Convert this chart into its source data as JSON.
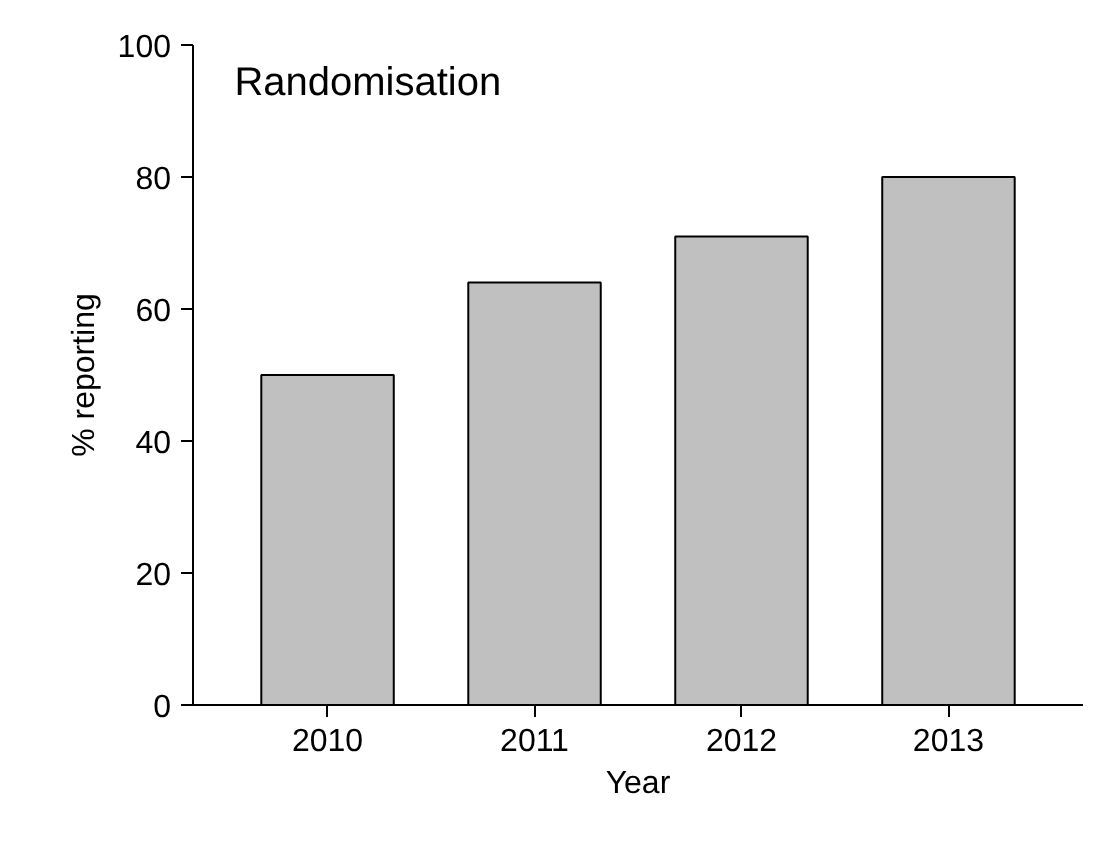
{
  "chart_data": {
    "type": "bar",
    "title": "Randomisation",
    "xlabel": "Year",
    "ylabel": "% reporting",
    "categories": [
      "2010",
      "2011",
      "2012",
      "2013"
    ],
    "values": [
      50,
      64,
      71,
      80
    ],
    "color": "#c0c0c0",
    "ylim": [
      0,
      100
    ],
    "yticks": [
      0,
      20,
      40,
      60,
      80,
      100
    ],
    "grid": false
  }
}
